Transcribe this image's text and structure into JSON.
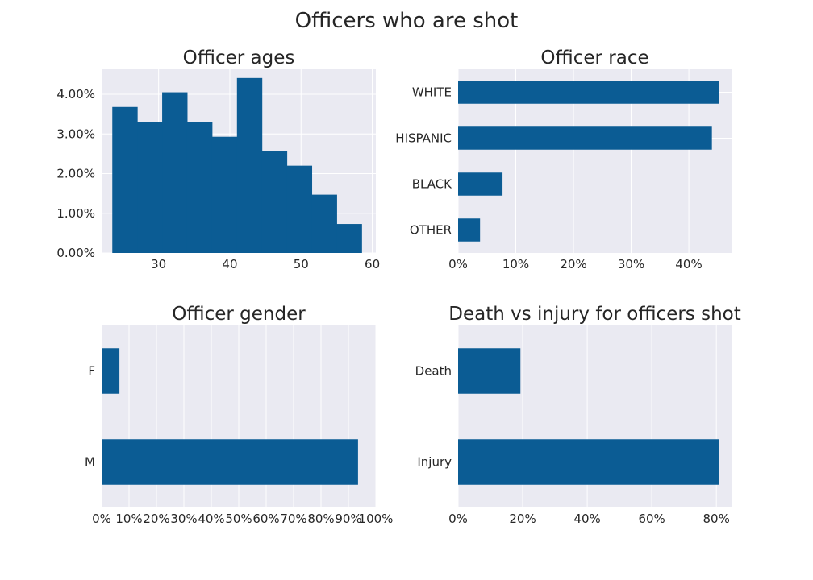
{
  "figure": {
    "title": "Officers who are shot"
  },
  "colors": {
    "bar": "#0b5c94",
    "panel_bg": "#eaeaf2",
    "grid": "#ffffff",
    "text": "#262626"
  },
  "chart_data": [
    {
      "type": "bar",
      "subtype": "histogram",
      "title": "Officer ages",
      "xlabel": "",
      "ylabel": "",
      "bins": [
        {
          "x0": 23.5,
          "x1": 27.0,
          "value": 0.0368
        },
        {
          "x0": 27.0,
          "x1": 30.5,
          "value": 0.033
        },
        {
          "x0": 30.5,
          "x1": 34.0,
          "value": 0.0405
        },
        {
          "x0": 34.0,
          "x1": 37.5,
          "value": 0.033
        },
        {
          "x0": 37.5,
          "x1": 41.0,
          "value": 0.0293
        },
        {
          "x0": 41.0,
          "x1": 44.5,
          "value": 0.0441
        },
        {
          "x0": 44.5,
          "x1": 48.0,
          "value": 0.0257
        },
        {
          "x0": 48.0,
          "x1": 51.5,
          "value": 0.022
        },
        {
          "x0": 51.5,
          "x1": 55.0,
          "value": 0.0147
        },
        {
          "x0": 55.0,
          "x1": 58.5,
          "value": 0.0073
        }
      ],
      "xlim": [
        22,
        60.5
      ],
      "ylim": [
        0,
        0.0463
      ],
      "xticks": [
        30,
        40,
        50,
        60
      ],
      "xtick_labels": [
        "30",
        "40",
        "50",
        "60"
      ],
      "yticks": [
        0,
        0.01,
        0.02,
        0.03,
        0.04
      ],
      "ytick_labels": [
        "0.00%",
        "1.00%",
        "2.00%",
        "3.00%",
        "4.00%"
      ],
      "grid": true
    },
    {
      "type": "bar",
      "orientation": "horizontal",
      "title": "Officer race",
      "xlabel": "",
      "ylabel": "",
      "categories": [
        "WHITE",
        "HISPANIC",
        "BLACK",
        "OTHER"
      ],
      "values": [
        0.452,
        0.44,
        0.077,
        0.038
      ],
      "xlim": [
        0,
        0.474
      ],
      "xticks": [
        0,
        0.1,
        0.2,
        0.3,
        0.4
      ],
      "xtick_labels": [
        "0%",
        "10%",
        "20%",
        "30%",
        "40%"
      ],
      "grid": true
    },
    {
      "type": "bar",
      "orientation": "horizontal",
      "title": "Officer gender",
      "xlabel": "",
      "ylabel": "",
      "categories": [
        "F",
        "M"
      ],
      "values": [
        0.065,
        0.935
      ],
      "xlim": [
        0,
        1.0
      ],
      "xticks": [
        0,
        0.1,
        0.2,
        0.3,
        0.4,
        0.5,
        0.6,
        0.7,
        0.8,
        0.9,
        1.0
      ],
      "xtick_labels": [
        "0%",
        "10%",
        "20%",
        "30%",
        "40%",
        "50%",
        "60%",
        "70%",
        "80%",
        "90%",
        "100%"
      ],
      "grid": true
    },
    {
      "type": "bar",
      "orientation": "horizontal",
      "title": "Death vs injury for officers shot",
      "xlabel": "",
      "ylabel": "",
      "categories": [
        "Death",
        "Injury"
      ],
      "values": [
        0.193,
        0.807
      ],
      "xlim": [
        0,
        0.847
      ],
      "xticks": [
        0,
        0.2,
        0.4,
        0.6,
        0.8
      ],
      "xtick_labels": [
        "0%",
        "20%",
        "40%",
        "60%",
        "80%"
      ],
      "grid": true
    }
  ]
}
